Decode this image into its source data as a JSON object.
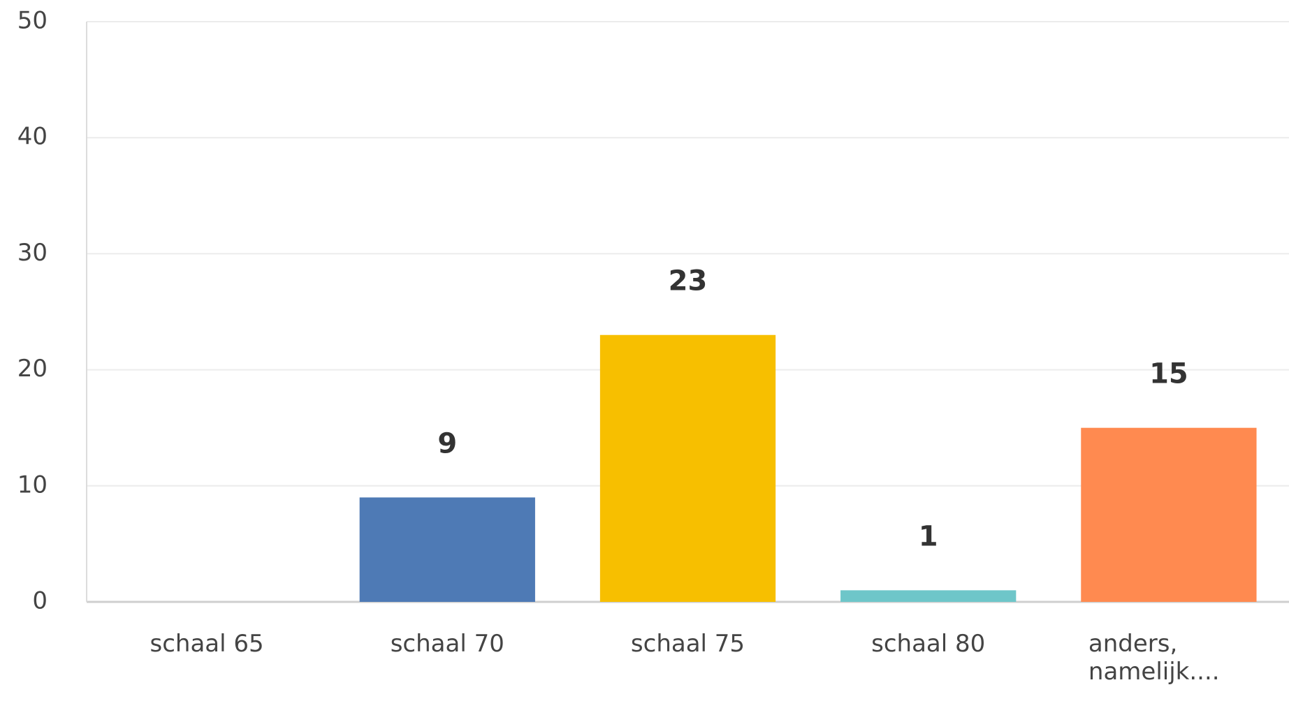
{
  "chart_data": {
    "type": "bar",
    "categories": [
      "schaal 65",
      "schaal 70",
      "schaal 75",
      "schaal 80",
      "anders, namelijk...."
    ],
    "values": [
      0,
      9,
      23,
      1,
      15
    ],
    "colors": [
      "#4e7ab5",
      "#4e7ab5",
      "#f7bf00",
      "#6ec6c9",
      "#ff8a50"
    ],
    "ylim": [
      0,
      50
    ],
    "yticks": [
      0,
      10,
      20,
      30,
      40,
      50
    ],
    "grid": true
  }
}
